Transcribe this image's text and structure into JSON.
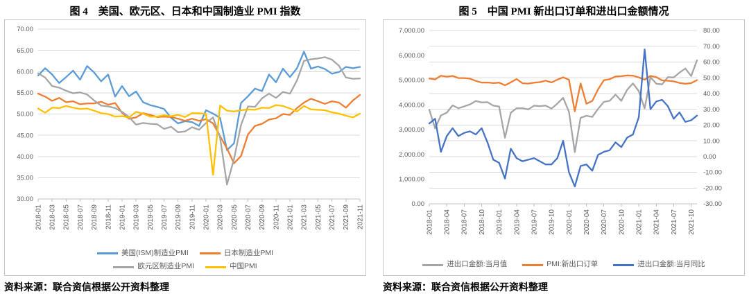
{
  "colors": {
    "grid": "#D9D9D9",
    "axis": "#BFBFBF",
    "tick_text": "#595959",
    "title_text": "#000000"
  },
  "figures": [
    {
      "title": "图 4　美国、欧元区、日本和中国制造业 PMI 指数",
      "source": "资料来源：联合资信根据公开资料整理",
      "chart_data": {
        "type": "line",
        "grid": "horizontal",
        "legend_position": "bottom",
        "x_label_every": 2,
        "x": [
          "2018-01",
          "2018-02",
          "2018-03",
          "2018-04",
          "2018-05",
          "2018-06",
          "2018-07",
          "2018-08",
          "2018-09",
          "2018-10",
          "2018-11",
          "2018-12",
          "2019-01",
          "2019-02",
          "2019-03",
          "2019-04",
          "2019-05",
          "2019-06",
          "2019-07",
          "2019-08",
          "2019-09",
          "2019-10",
          "2019-11",
          "2019-12",
          "2020-01",
          "2020-02",
          "2020-03",
          "2020-04",
          "2020-05",
          "2020-06",
          "2020-07",
          "2020-08",
          "2020-09",
          "2020-10",
          "2020-11",
          "2020-12",
          "2021-01",
          "2021-02",
          "2021-03",
          "2021-04",
          "2021-05",
          "2021-06",
          "2021-07",
          "2021-08",
          "2021-09",
          "2021-10",
          "2021-11"
        ],
        "ylim": [
          30,
          70
        ],
        "y_ticks": {
          "values": [
            70,
            65,
            60,
            55,
            50,
            45,
            40,
            35,
            30
          ],
          "labels": [
            "70.00",
            "65.00",
            "60.00",
            "55.00",
            "50.00",
            "45.00",
            "40.00",
            "35.00",
            "30.00"
          ]
        },
        "series": [
          {
            "name": "美国(ISM)制造业PMI",
            "color": "#5B9BD5",
            "values": [
              59.1,
              60.8,
              59.3,
              57.3,
              58.7,
              60.2,
              58.1,
              61.3,
              59.8,
              57.7,
              59.3,
              54.1,
              56.6,
              54.2,
              55.3,
              52.8,
              52.1,
              51.7,
              51.2,
              49.1,
              47.8,
              48.3,
              48.1,
              47.2,
              50.9,
              50.1,
              49.1,
              41.5,
              43.1,
              52.6,
              54.2,
              56.0,
              55.4,
              59.3,
              57.5,
              60.7,
              58.7,
              60.8,
              64.7,
              60.7,
              61.2,
              60.6,
              59.5,
              59.9,
              61.1,
              60.8,
              61.1
            ]
          },
          {
            "name": "日本制造业PMI",
            "color": "#ED7D31",
            "values": [
              54.8,
              54.1,
              53.1,
              53.8,
              52.8,
              53.0,
              52.3,
              52.5,
              52.5,
              52.9,
              52.2,
              52.6,
              50.3,
              48.9,
              49.2,
              50.2,
              49.8,
              49.3,
              49.4,
              49.3,
              48.9,
              48.4,
              48.9,
              48.4,
              48.8,
              47.8,
              44.8,
              41.9,
              38.4,
              40.1,
              45.2,
              47.2,
              47.7,
              48.7,
              49.0,
              50.0,
              49.8,
              51.4,
              52.7,
              53.6,
              53.0,
              52.4,
              53.0,
              52.7,
              51.5,
              53.2,
              54.5
            ]
          },
          {
            "name": "欧元区制造业PMI",
            "color": "#A5A5A5",
            "values": [
              59.6,
              58.6,
              56.6,
              56.2,
              55.5,
              54.9,
              55.1,
              54.6,
              53.2,
              52.0,
              51.8,
              51.4,
              50.5,
              49.3,
              47.5,
              47.9,
              47.7,
              47.6,
              46.5,
              47.0,
              45.7,
              45.9,
              46.9,
              46.3,
              47.9,
              49.2,
              44.5,
              33.4,
              39.4,
              47.4,
              51.8,
              51.7,
              53.7,
              54.8,
              53.8,
              55.2,
              54.8,
              57.9,
              62.5,
              62.9,
              63.1,
              63.4,
              62.8,
              61.4,
              58.6,
              58.3,
              58.4
            ]
          },
          {
            "name": "中国PMI",
            "color": "#FFC000",
            "values": [
              51.3,
              50.3,
              51.5,
              51.4,
              51.9,
              51.5,
              51.2,
              51.3,
              50.8,
              50.2,
              50.0,
              49.4,
              49.5,
              49.2,
              50.5,
              50.1,
              49.4,
              49.4,
              49.7,
              49.5,
              49.8,
              49.3,
              50.2,
              50.2,
              50.0,
              35.7,
              52.0,
              50.8,
              50.6,
              50.9,
              51.1,
              51.0,
              51.5,
              51.4,
              52.1,
              51.9,
              51.3,
              50.6,
              51.9,
              51.1,
              51.0,
              50.9,
              50.4,
              50.1,
              49.6,
              49.2,
              50.1
            ]
          }
        ]
      }
    },
    {
      "title": "图 5　中国 PMI 新出口订单和进出口金额情况",
      "source": "资料来源：联合资信根据公开资料整理",
      "chart_data": {
        "type": "line",
        "dual_axis": true,
        "grid": "horizontal",
        "legend_position": "bottom",
        "x_label_every": 3,
        "x": [
          "2018-01",
          "2018-02",
          "2018-03",
          "2018-04",
          "2018-05",
          "2018-06",
          "2018-07",
          "2018-08",
          "2018-09",
          "2018-10",
          "2018-11",
          "2018-12",
          "2019-01",
          "2019-02",
          "2019-03",
          "2019-04",
          "2019-05",
          "2019-06",
          "2019-07",
          "2019-08",
          "2019-09",
          "2019-10",
          "2019-11",
          "2019-12",
          "2020-01",
          "2020-02",
          "2020-03",
          "2020-04",
          "2020-05",
          "2020-06",
          "2020-07",
          "2020-08",
          "2020-09",
          "2020-10",
          "2020-11",
          "2020-12",
          "2021-01",
          "2021-02",
          "2021-03",
          "2021-04",
          "2021-05",
          "2021-06",
          "2021-07",
          "2021-08",
          "2021-09",
          "2021-10",
          "2021-11"
        ],
        "left_ylim": [
          0,
          7000
        ],
        "right_ylim": [
          -30,
          80
        ],
        "left_y_ticks": {
          "values": [
            7000,
            6000,
            5000,
            4000,
            3000,
            2000,
            1000,
            0
          ],
          "labels": [
            "7,000.00",
            "6,000.00",
            "5,000.00",
            "4,000.00",
            "3,000.00",
            "2,000.00",
            "1,000.00",
            "0.00"
          ]
        },
        "right_y_ticks": {
          "values": [
            80,
            70,
            60,
            50,
            40,
            30,
            20,
            10,
            0,
            -10,
            -20,
            -30
          ],
          "labels": [
            "80.00",
            "70.00",
            "60.00",
            "50.00",
            "40.00",
            "30.00",
            "20.00",
            "10.00",
            "0.00",
            "-10.00",
            "-20.00",
            "-30.00"
          ]
        },
        "series": [
          {
            "name": "进出口金额:当月值",
            "axis": "left",
            "color": "#A5A5A5",
            "values": [
              3800,
              3050,
              3570,
              3680,
              3975,
              3860,
              3935,
              4015,
              4155,
              4095,
              4105,
              3965,
              3930,
              2665,
              3680,
              3860,
              3860,
              3810,
              3965,
              3945,
              3965,
              3845,
              4045,
              4280,
              3715,
              2085,
              3475,
              3555,
              3510,
              3830,
              4115,
              4160,
              4410,
              4160,
              4605,
              4865,
              4550,
              3850,
              5115,
              4850,
              4825,
              5115,
              5105,
              5300,
              5465,
              5160,
              5795
            ]
          },
          {
            "name": "PMI:新出口订单",
            "axis": "right",
            "color": "#ED7D31",
            "values": [
              49.5,
              49.0,
              51.3,
              50.7,
              51.2,
              49.8,
              49.8,
              49.4,
              48.0,
              46.9,
              47.0,
              46.6,
              46.9,
              45.2,
              47.1,
              49.2,
              46.5,
              46.3,
              46.9,
              47.2,
              48.2,
              47.0,
              48.8,
              50.3,
              48.7,
              28.7,
              46.4,
              33.5,
              35.3,
              42.6,
              48.4,
              49.1,
              50.8,
              51.0,
              51.5,
              51.3,
              50.2,
              48.8,
              51.2,
              50.4,
              48.3,
              48.1,
              47.7,
              46.7,
              46.2,
              46.6,
              48.5
            ]
          },
          {
            "name": "进出口金额:当月同比",
            "axis": "right",
            "color": "#4472C4",
            "values": [
              21,
              24,
              3,
              13,
              18,
              13,
              15,
              16,
              14,
              18,
              9,
              -2,
              -4,
              -14,
              5,
              -1,
              -3,
              -2,
              -1,
              -3,
              -5,
              -5,
              -1,
              10,
              -10,
              -19,
              -6,
              -5,
              -9,
              1,
              3,
              4,
              9,
              6,
              12,
              14,
              25,
              68,
              30,
              35,
              36,
              32,
              24,
              28,
              22,
              23,
              26
            ]
          }
        ]
      }
    }
  ]
}
